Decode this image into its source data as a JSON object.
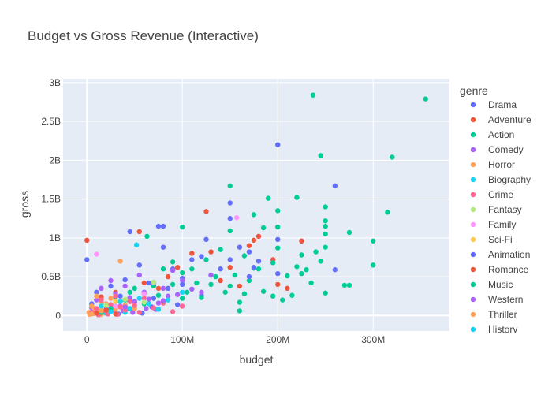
{
  "chart_data": {
    "type": "scatter",
    "title": "Budget vs Gross Revenue (Interactive)",
    "xlabel": "budget",
    "ylabel": "gross",
    "xlim": [
      -25000000,
      380000000
    ],
    "ylim": [
      -200000000,
      3050000000
    ],
    "x_ticks": [
      {
        "value": 0,
        "label": "0"
      },
      {
        "value": 100000000,
        "label": "100M"
      },
      {
        "value": 200000000,
        "label": "200M"
      },
      {
        "value": 300000000,
        "label": "300M"
      }
    ],
    "y_ticks": [
      {
        "value": 0,
        "label": "0"
      },
      {
        "value": 500000000,
        "label": "0.5B"
      },
      {
        "value": 1000000000,
        "label": "1B"
      },
      {
        "value": 1500000000,
        "label": "1.5B"
      },
      {
        "value": 2000000000,
        "label": "2B"
      },
      {
        "value": 2500000000,
        "label": "2.5B"
      },
      {
        "value": 3000000000,
        "label": "3B"
      }
    ],
    "grid": true,
    "background_color": "#e5ecf6",
    "legend": {
      "title": "genre",
      "placement": "right"
    },
    "series": [
      {
        "name": "Drama",
        "color": "#636efa",
        "points": [
          [
            0,
            720000000
          ],
          [
            5,
            150000000
          ],
          [
            10,
            300000000
          ],
          [
            15,
            210000000
          ],
          [
            20,
            80000000
          ],
          [
            25,
            380000000
          ],
          [
            30,
            120000000
          ],
          [
            35,
            250000000
          ],
          [
            40,
            460000000
          ],
          [
            45,
            1080000000
          ],
          [
            50,
            180000000
          ],
          [
            55,
            650000000
          ],
          [
            60,
            300000000
          ],
          [
            65,
            420000000
          ],
          [
            70,
            220000000
          ],
          [
            75,
            1150000000
          ],
          [
            80,
            880000000
          ],
          [
            85,
            350000000
          ],
          [
            90,
            600000000
          ],
          [
            95,
            140000000
          ],
          [
            100,
            480000000
          ],
          [
            110,
            720000000
          ],
          [
            120,
            260000000
          ],
          [
            125,
            980000000
          ],
          [
            130,
            520000000
          ],
          [
            150,
            1450000000
          ],
          [
            150,
            1250000000
          ],
          [
            170,
            820000000
          ],
          [
            200,
            2200000000
          ],
          [
            200,
            980000000
          ],
          [
            225,
            960000000
          ],
          [
            260,
            1670000000
          ],
          [
            260,
            590000000
          ],
          [
            12,
            60000000
          ],
          [
            22,
            40000000
          ],
          [
            33,
            20000000
          ],
          [
            42,
            90000000
          ],
          [
            58,
            30000000
          ],
          [
            68,
            110000000
          ]
        ]
      },
      {
        "name": "Adventure",
        "color": "#ef553b",
        "points": [
          [
            0,
            970000000
          ],
          [
            15,
            240000000
          ],
          [
            30,
            300000000
          ],
          [
            45,
            180000000
          ],
          [
            55,
            1080000000
          ],
          [
            60,
            420000000
          ],
          [
            75,
            350000000
          ],
          [
            95,
            620000000
          ],
          [
            110,
            800000000
          ],
          [
            125,
            1340000000
          ],
          [
            130,
            820000000
          ],
          [
            150,
            620000000
          ],
          [
            170,
            900000000
          ],
          [
            175,
            970000000
          ],
          [
            180,
            1020000000
          ],
          [
            195,
            720000000
          ],
          [
            200,
            400000000
          ],
          [
            210,
            350000000
          ],
          [
            225,
            960000000
          ],
          [
            25,
            90000000
          ],
          [
            40,
            130000000
          ],
          [
            85,
            500000000
          ],
          [
            140,
            450000000
          ],
          [
            160,
            380000000
          ]
        ]
      },
      {
        "name": "Action",
        "color": "#00cc96",
        "points": [
          [
            237,
            2840000000
          ],
          [
            355,
            2790000000
          ],
          [
            245,
            2060000000
          ],
          [
            320,
            2040000000
          ],
          [
            150,
            1670000000
          ],
          [
            190,
            1510000000
          ],
          [
            220,
            1520000000
          ],
          [
            250,
            1400000000
          ],
          [
            315,
            1330000000
          ],
          [
            200,
            1350000000
          ],
          [
            175,
            1300000000
          ],
          [
            250,
            1220000000
          ],
          [
            250,
            1150000000
          ],
          [
            185,
            1130000000
          ],
          [
            275,
            1070000000
          ],
          [
            200,
            1140000000
          ],
          [
            150,
            1090000000
          ],
          [
            100,
            1140000000
          ],
          [
            300,
            960000000
          ],
          [
            300,
            650000000
          ],
          [
            270,
            390000000
          ],
          [
            275,
            390000000
          ],
          [
            250,
            290000000
          ],
          [
            225,
            540000000
          ],
          [
            230,
            590000000
          ],
          [
            240,
            820000000
          ],
          [
            210,
            510000000
          ],
          [
            165,
            770000000
          ],
          [
            125,
            720000000
          ],
          [
            140,
            850000000
          ],
          [
            90,
            690000000
          ],
          [
            110,
            600000000
          ],
          [
            100,
            550000000
          ],
          [
            80,
            600000000
          ],
          [
            63,
            1020000000
          ],
          [
            60,
            280000000
          ],
          [
            70,
            380000000
          ],
          [
            130,
            400000000
          ],
          [
            145,
            300000000
          ],
          [
            160,
            170000000
          ],
          [
            160,
            60000000
          ],
          [
            170,
            450000000
          ],
          [
            180,
            600000000
          ],
          [
            195,
            250000000
          ],
          [
            215,
            260000000
          ],
          [
            235,
            420000000
          ],
          [
            250,
            880000000
          ],
          [
            250,
            1050000000
          ],
          [
            105,
            300000000
          ],
          [
            115,
            420000000
          ],
          [
            135,
            500000000
          ],
          [
            155,
            520000000
          ],
          [
            165,
            280000000
          ],
          [
            185,
            310000000
          ],
          [
            205,
            200000000
          ],
          [
            40,
            200000000
          ],
          [
            50,
            350000000
          ],
          [
            75,
            260000000
          ],
          [
            90,
            400000000
          ],
          [
            120,
            230000000
          ],
          [
            150,
            380000000
          ],
          [
            195,
            680000000
          ],
          [
            225,
            780000000
          ],
          [
            245,
            700000000
          ],
          [
            175,
            610000000
          ],
          [
            200,
            870000000
          ],
          [
            220,
            630000000
          ],
          [
            30,
            240000000
          ],
          [
            45,
            300000000
          ],
          [
            60,
            150000000
          ],
          [
            80,
            180000000
          ],
          [
            100,
            220000000
          ]
        ]
      },
      {
        "name": "Comedy",
        "color": "#ab63fa",
        "points": [
          [
            5,
            100000000
          ],
          [
            10,
            200000000
          ],
          [
            15,
            350000000
          ],
          [
            20,
            150000000
          ],
          [
            25,
            450000000
          ],
          [
            30,
            280000000
          ],
          [
            35,
            120000000
          ],
          [
            40,
            380000000
          ],
          [
            45,
            230000000
          ],
          [
            50,
            180000000
          ],
          [
            55,
            520000000
          ],
          [
            60,
            300000000
          ],
          [
            65,
            210000000
          ],
          [
            70,
            420000000
          ],
          [
            75,
            160000000
          ],
          [
            80,
            350000000
          ],
          [
            85,
            250000000
          ],
          [
            90,
            580000000
          ],
          [
            95,
            270000000
          ],
          [
            100,
            450000000
          ],
          [
            110,
            340000000
          ],
          [
            120,
            300000000
          ],
          [
            130,
            520000000
          ],
          [
            8,
            50000000
          ],
          [
            18,
            30000000
          ],
          [
            28,
            70000000
          ],
          [
            38,
            60000000
          ],
          [
            48,
            40000000
          ],
          [
            62,
            90000000
          ],
          [
            72,
            80000000
          ]
        ]
      },
      {
        "name": "Horror",
        "color": "#ffa15a",
        "points": [
          [
            2,
            40000000
          ],
          [
            5,
            120000000
          ],
          [
            8,
            90000000
          ],
          [
            10,
            250000000
          ],
          [
            12,
            60000000
          ],
          [
            15,
            180000000
          ],
          [
            18,
            30000000
          ],
          [
            20,
            150000000
          ],
          [
            25,
            220000000
          ],
          [
            28,
            100000000
          ],
          [
            30,
            80000000
          ],
          [
            35,
            700000000
          ],
          [
            40,
            130000000
          ],
          [
            50,
            90000000
          ],
          [
            3,
            15000000
          ],
          [
            7,
            25000000
          ],
          [
            14,
            10000000
          ]
        ]
      },
      {
        "name": "Biography",
        "color": "#19d3f3",
        "points": [
          [
            15,
            120000000
          ],
          [
            25,
            60000000
          ],
          [
            35,
            180000000
          ],
          [
            45,
            90000000
          ],
          [
            55,
            220000000
          ],
          [
            65,
            150000000
          ],
          [
            75,
            80000000
          ],
          [
            85,
            200000000
          ],
          [
            100,
            300000000
          ],
          [
            52,
            910000000
          ],
          [
            20,
            30000000
          ],
          [
            40,
            40000000
          ]
        ]
      },
      {
        "name": "Crime",
        "color": "#ff6692",
        "points": [
          [
            5,
            40000000
          ],
          [
            10,
            90000000
          ],
          [
            15,
            200000000
          ],
          [
            20,
            60000000
          ],
          [
            25,
            140000000
          ],
          [
            30,
            250000000
          ],
          [
            35,
            110000000
          ],
          [
            40,
            70000000
          ],
          [
            45,
            180000000
          ],
          [
            50,
            130000000
          ],
          [
            55,
            40000000
          ],
          [
            60,
            220000000
          ],
          [
            70,
            100000000
          ],
          [
            80,
            160000000
          ],
          [
            90,
            50000000
          ],
          [
            100,
            120000000
          ],
          [
            12,
            10000000
          ],
          [
            22,
            20000000
          ],
          [
            32,
            15000000
          ]
        ]
      },
      {
        "name": "Fantasy",
        "color": "#b6e880",
        "points": [
          [
            20,
            130000000
          ],
          [
            40,
            210000000
          ],
          [
            60,
            170000000
          ],
          [
            70,
            430000000
          ]
        ]
      },
      {
        "name": "Family",
        "color": "#ff97ff",
        "points": [
          [
            10,
            790000000
          ],
          [
            157,
            1260000000
          ],
          [
            30,
            120000000
          ],
          [
            60,
            280000000
          ]
        ]
      },
      {
        "name": "Sci-Fi",
        "color": "#fecb52",
        "points": [
          [
            15,
            60000000
          ],
          [
            30,
            180000000
          ]
        ]
      },
      {
        "name": "Animation",
        "color": "#636efa",
        "points": [
          [
            80,
            1150000000
          ],
          [
            100,
            400000000
          ],
          [
            120,
            760000000
          ],
          [
            140,
            600000000
          ],
          [
            150,
            720000000
          ],
          [
            160,
            880000000
          ],
          [
            170,
            500000000
          ],
          [
            175,
            620000000
          ],
          [
            180,
            700000000
          ],
          [
            200,
            540000000
          ]
        ]
      },
      {
        "name": "Romance",
        "color": "#ef553b",
        "points": [
          [
            10,
            30000000
          ],
          [
            20,
            70000000
          ],
          [
            30,
            20000000
          ]
        ]
      },
      {
        "name": "Music",
        "color": "#00cc96",
        "points": [
          [
            15,
            40000000
          ],
          [
            25,
            90000000
          ]
        ]
      },
      {
        "name": "Western",
        "color": "#ab63fa",
        "points": [
          [
            40,
            110000000
          ],
          [
            80,
            190000000
          ]
        ]
      },
      {
        "name": "Thriller",
        "color": "#ffa15a",
        "points": [
          [
            5,
            20000000
          ],
          [
            15,
            60000000
          ]
        ]
      },
      {
        "name": "History",
        "color": "#19d3f3",
        "points": [
          [
            25,
            50000000
          ]
        ]
      }
    ],
    "x_point_unit": 1000000
  }
}
